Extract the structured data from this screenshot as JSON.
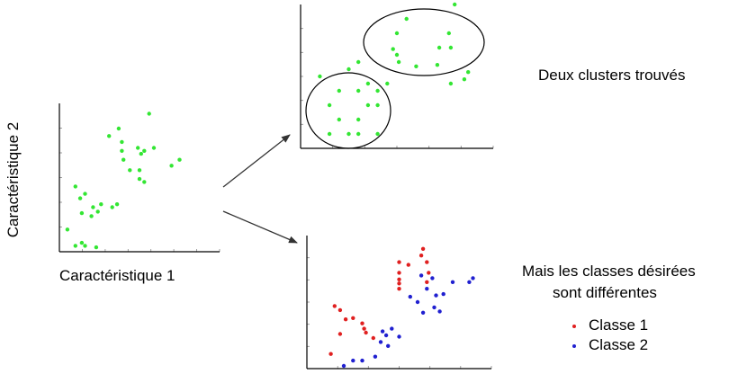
{
  "labels": {
    "x_axis": "Caractéristique 1",
    "y_axis": "Caractéristique 2",
    "clusters_found": "Deux clusters trouvés",
    "classes_desc_line1": "Mais les classes désirées",
    "classes_desc_line2": "sont différentes",
    "legend": [
      "Classe 1",
      "Classe 2"
    ]
  },
  "colors": {
    "unlabeled": "#33e633",
    "class_1": "#e02020",
    "class_2": "#2020d0",
    "axis": "#000000",
    "tick": "#888888",
    "arrow": "#333333"
  },
  "chart_data": [
    {
      "type": "scatter",
      "panel": "original-data",
      "xlabel": "Caractéristique 1",
      "ylabel": "Caractéristique 2",
      "xlim": [
        0,
        10
      ],
      "ylim": [
        0,
        10
      ],
      "series": [
        {
          "points": [
            [
              0.5,
              1.5
            ],
            [
              1.0,
              0.4
            ],
            [
              1.4,
              0.6
            ],
            [
              1.6,
              0.4
            ],
            [
              2.3,
              0.3
            ],
            [
              1.0,
              4.4
            ],
            [
              1.3,
              3.6
            ],
            [
              1.6,
              3.9
            ],
            [
              1.4,
              2.6
            ],
            [
              2.0,
              2.4
            ],
            [
              2.1,
              3.0
            ],
            [
              2.4,
              2.7
            ],
            [
              2.6,
              3.2
            ],
            [
              3.3,
              3.0
            ],
            [
              3.6,
              3.2
            ],
            [
              3.1,
              7.8
            ],
            [
              3.7,
              8.3
            ],
            [
              3.9,
              7.4
            ],
            [
              3.9,
              6.8
            ],
            [
              4.0,
              6.2
            ],
            [
              4.4,
              5.5
            ],
            [
              4.9,
              7.0
            ],
            [
              5.1,
              6.6
            ],
            [
              5.3,
              6.8
            ],
            [
              5.0,
              5.5
            ],
            [
              5.0,
              4.9
            ],
            [
              5.3,
              4.7
            ],
            [
              5.9,
              7.0
            ],
            [
              7.0,
              5.8
            ],
            [
              7.5,
              6.2
            ],
            [
              5.6,
              9.3
            ]
          ]
        }
      ]
    },
    {
      "type": "scatter",
      "panel": "clusters",
      "xlim": [
        0,
        10
      ],
      "ylim": [
        0,
        10
      ],
      "series": [
        {
          "points": [
            [
              1.0,
              5.0
            ],
            [
              1.5,
              3.0
            ],
            [
              2.0,
              2.0
            ],
            [
              2.0,
              4.0
            ],
            [
              2.5,
              1.0
            ],
            [
              3.0,
              2.0
            ],
            [
              3.5,
              3.0
            ],
            [
              3.0,
              4.0
            ],
            [
              3.5,
              4.5
            ],
            [
              4.0,
              4.0
            ],
            [
              4.5,
              4.5
            ],
            [
              4.0,
              3.0
            ],
            [
              2.5,
              5.5
            ],
            [
              3.0,
              6.0
            ],
            [
              1.5,
              1.0
            ],
            [
              3.0,
              1.0
            ],
            [
              4.0,
              1.0
            ],
            [
              5.5,
              9.0
            ],
            [
              5.0,
              8.0
            ],
            [
              4.8,
              6.9
            ],
            [
              5.0,
              6.5
            ],
            [
              5.1,
              6.0
            ],
            [
              6.0,
              5.7
            ],
            [
              7.1,
              5.8
            ],
            [
              7.8,
              4.5
            ],
            [
              8.5,
              4.8
            ],
            [
              8.7,
              5.3
            ],
            [
              7.2,
              7.0
            ],
            [
              7.8,
              7.0
            ],
            [
              7.7,
              8.0
            ],
            [
              8.0,
              10.0
            ]
          ]
        }
      ]
    },
    {
      "type": "scatter",
      "panel": "classes",
      "xlim": [
        0,
        10
      ],
      "ylim": [
        0,
        10
      ],
      "series": [
        {
          "name": "Classe 1",
          "points": [
            [
              1.8,
              4.4
            ],
            [
              1.5,
              4.7
            ],
            [
              2.1,
              3.7
            ],
            [
              2.5,
              3.8
            ],
            [
              3.0,
              3.4
            ],
            [
              3.1,
              3.0
            ],
            [
              3.2,
              2.7
            ],
            [
              3.6,
              2.3
            ],
            [
              1.3,
              1.1
            ],
            [
              1.8,
              2.6
            ],
            [
              5.0,
              8.0
            ],
            [
              5.0,
              6.7
            ],
            [
              5.0,
              7.2
            ],
            [
              5.0,
              6.0
            ],
            [
              5.0,
              6.4
            ],
            [
              5.5,
              7.8
            ],
            [
              6.3,
              9.0
            ],
            [
              6.2,
              8.5
            ],
            [
              6.5,
              8.0
            ],
            [
              6.6,
              7.2
            ],
            [
              6.5,
              6.5
            ]
          ]
        },
        {
          "name": "Classe 2",
          "points": [
            [
              2.0,
              0.2
            ],
            [
              2.5,
              0.6
            ],
            [
              3.0,
              0.6
            ],
            [
              3.7,
              0.9
            ],
            [
              4.0,
              2.0
            ],
            [
              4.3,
              2.5
            ],
            [
              4.4,
              1.7
            ],
            [
              4.1,
              2.8
            ],
            [
              4.6,
              3.0
            ],
            [
              5.0,
              2.4
            ],
            [
              6.2,
              7.0
            ],
            [
              6.0,
              5.0
            ],
            [
              6.5,
              6.0
            ],
            [
              6.8,
              6.8
            ],
            [
              7.0,
              5.5
            ],
            [
              8.8,
              6.5
            ],
            [
              9.0,
              6.8
            ],
            [
              7.2,
              4.3
            ],
            [
              6.9,
              4.6
            ],
            [
              7.4,
              5.6
            ],
            [
              7.9,
              6.5
            ],
            [
              5.6,
              5.4
            ],
            [
              6.3,
              4.2
            ]
          ]
        }
      ]
    }
  ]
}
